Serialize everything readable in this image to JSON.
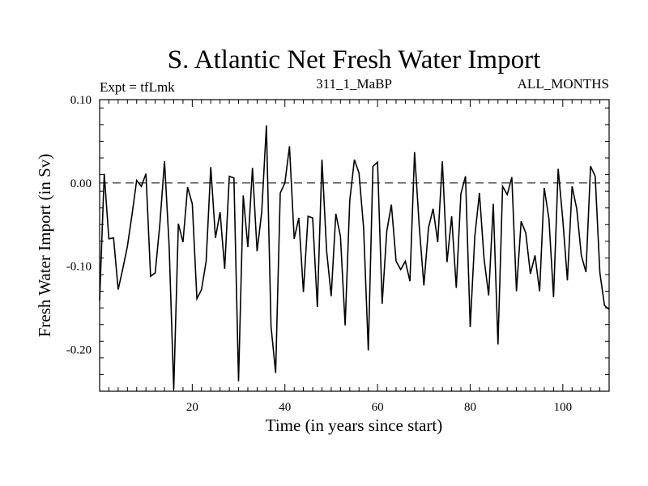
{
  "chart_data": {
    "type": "line",
    "title": "S. Atlantic Net Fresh Water Import",
    "subtitle_left": "Expt = tfLmk",
    "subtitle_center": "311_1_MaBP",
    "subtitle_right": "ALL_MONTHS",
    "xlabel": "Time (in years since start)",
    "ylabel": "Fresh Water Import (in Sv)",
    "xlim": [
      0,
      110
    ],
    "ylim": [
      -0.25,
      0.1
    ],
    "x_ticks": [
      20,
      40,
      60,
      80,
      100
    ],
    "x_tick_labels": [
      "20",
      "40",
      "60",
      "80",
      "100"
    ],
    "y_ticks": [
      0.1,
      0.0,
      -0.1,
      -0.2
    ],
    "y_tick_labels": [
      "0.10",
      "0.00",
      "-0.10",
      "-0.20"
    ],
    "reference_line_y": 0.0,
    "series": [
      {
        "name": "Net Fresh Water Import",
        "x": [
          0,
          1,
          2,
          3,
          4,
          5,
          6,
          7,
          8,
          9,
          10,
          11,
          12,
          13,
          14,
          15,
          16,
          17,
          18,
          19,
          20,
          21,
          22,
          23,
          24,
          25,
          26,
          27,
          28,
          29,
          30,
          31,
          32,
          33,
          34,
          35,
          36,
          37,
          38,
          39,
          40,
          41,
          42,
          43,
          44,
          45,
          46,
          47,
          48,
          49,
          50,
          51,
          52,
          53,
          54,
          55,
          56,
          57,
          58,
          59,
          60,
          61,
          62,
          63,
          64,
          65,
          66,
          67,
          68,
          69,
          70,
          71,
          72,
          73,
          74,
          75,
          76,
          77,
          78,
          79,
          80,
          81,
          82,
          83,
          84,
          85,
          86,
          87,
          88,
          89,
          90,
          91,
          92,
          93,
          94,
          95,
          96,
          97,
          98,
          99,
          100,
          101,
          102,
          103,
          104,
          105,
          106,
          107,
          108,
          109,
          110
        ],
        "values": [
          -0.141,
          0.011,
          -0.067,
          -0.066,
          -0.128,
          -0.103,
          -0.076,
          -0.038,
          0.003,
          -0.004,
          0.011,
          -0.112,
          -0.108,
          -0.05,
          0.026,
          -0.075,
          -0.248,
          -0.049,
          -0.071,
          -0.005,
          -0.025,
          -0.139,
          -0.128,
          -0.094,
          0.019,
          -0.066,
          -0.035,
          -0.103,
          0.008,
          0.006,
          -0.238,
          -0.015,
          -0.077,
          0.018,
          -0.082,
          -0.035,
          0.069,
          -0.172,
          -0.228,
          -0.012,
          0.0,
          0.044,
          -0.067,
          -0.042,
          -0.131,
          -0.04,
          -0.042,
          -0.149,
          0.028,
          -0.081,
          -0.136,
          -0.037,
          -0.064,
          -0.171,
          -0.021,
          0.028,
          0.012,
          -0.054,
          -0.201,
          0.02,
          0.025,
          -0.145,
          -0.058,
          -0.026,
          -0.094,
          -0.104,
          -0.094,
          -0.118,
          0.037,
          -0.052,
          -0.123,
          -0.054,
          -0.031,
          -0.071,
          0.026,
          -0.095,
          -0.04,
          -0.126,
          -0.013,
          0.008,
          -0.173,
          -0.064,
          -0.012,
          -0.091,
          -0.135,
          -0.025,
          -0.194,
          -0.004,
          -0.014,
          0.007,
          -0.13,
          -0.046,
          -0.06,
          -0.109,
          -0.087,
          -0.13,
          -0.006,
          -0.043,
          -0.137,
          0.017,
          -0.044,
          -0.117,
          -0.004,
          -0.031,
          -0.087,
          -0.107,
          0.02,
          0.008,
          -0.108,
          -0.147,
          -0.152
        ]
      }
    ]
  }
}
